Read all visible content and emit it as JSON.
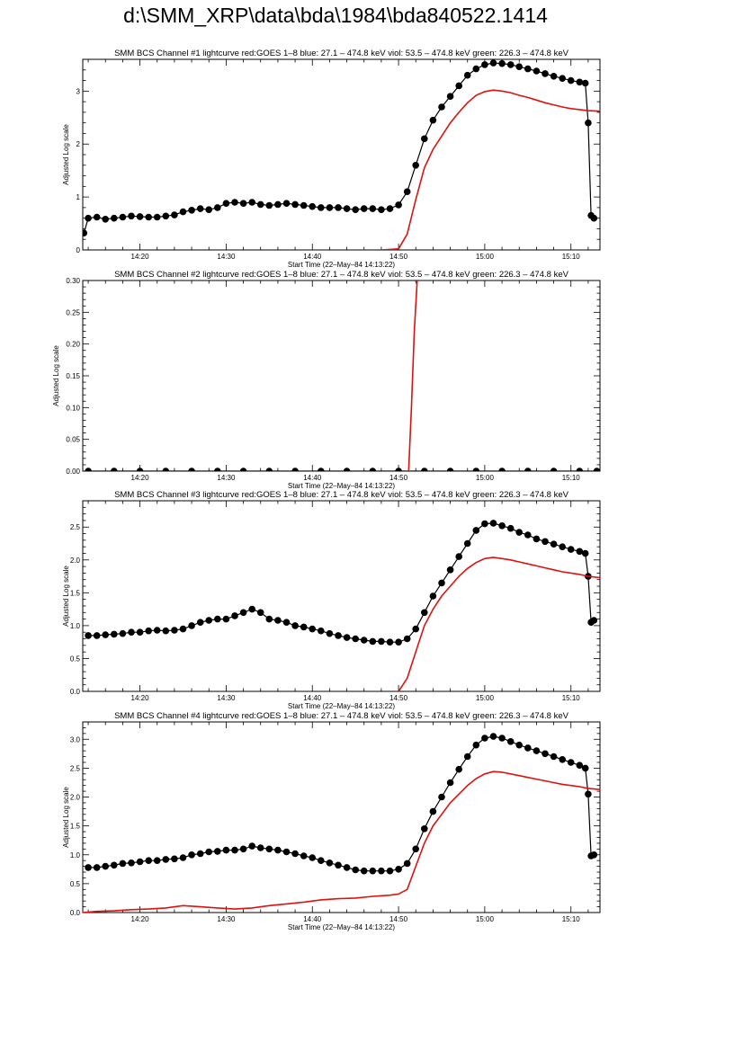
{
  "page": {
    "title": "d:\\SMM_XRP\\data\\bda\\1984\\bda840522.1414"
  },
  "colors": {
    "bcs": "#000000",
    "goes": "#e0100c"
  },
  "chart_data": [
    {
      "type": "line",
      "title": "SMM BCS Channel #1 lightcurve  red:GOES 1–8  blue: 27.1 – 474.8 keV  viol: 53.5 – 474.8 keV  green: 226.3 – 474.8 keV",
      "xlabel": "Start Time (22–May–84 14:13:22)",
      "ylabel": "Adjusted Log scale",
      "xlim": [
        "14:13:22",
        "15:13:22"
      ],
      "ylim": [
        0,
        3.6
      ],
      "x_ticks": [
        "14:20",
        "14:30",
        "14:40",
        "14:50",
        "15:00",
        "15:10"
      ],
      "y_ticks": [
        "0",
        "1",
        "2",
        "3"
      ],
      "y_tick_values": [
        0,
        1,
        2,
        3
      ],
      "series": [
        {
          "color": "black",
          "style": "line+markers",
          "x": [
            "14:13:30",
            "14:14:00",
            "14:15:00",
            "14:16:00",
            "14:17:00",
            "14:18:00",
            "14:19:00",
            "14:20:00",
            "14:21:00",
            "14:22:00",
            "14:23:00",
            "14:24:00",
            "14:25:00",
            "14:26:00",
            "14:27:00",
            "14:28:00",
            "14:29:00",
            "14:30:00",
            "14:31:00",
            "14:32:00",
            "14:33:00",
            "14:34:00",
            "14:35:00",
            "14:36:00",
            "14:37:00",
            "14:38:00",
            "14:39:00",
            "14:40:00",
            "14:41:00",
            "14:42:00",
            "14:43:00",
            "14:44:00",
            "14:45:00",
            "14:46:00",
            "14:47:00",
            "14:48:00",
            "14:49:00",
            "14:50:00",
            "14:51:00",
            "14:52:00",
            "14:53:00",
            "14:54:00",
            "14:55:00",
            "14:56:00",
            "14:57:00",
            "14:58:00",
            "14:59:00",
            "15:00:00",
            "15:01:00",
            "15:02:00",
            "15:03:00",
            "15:04:00",
            "15:05:00",
            "15:06:00",
            "15:07:00",
            "15:08:00",
            "15:09:00",
            "15:10:00",
            "15:11:00",
            "15:11:40",
            "15:12:00",
            "15:12:20",
            "15:12:40"
          ],
          "y": [
            0.32,
            0.6,
            0.62,
            0.58,
            0.6,
            0.62,
            0.64,
            0.63,
            0.62,
            0.62,
            0.64,
            0.66,
            0.72,
            0.75,
            0.78,
            0.76,
            0.8,
            0.88,
            0.9,
            0.88,
            0.9,
            0.86,
            0.84,
            0.86,
            0.88,
            0.86,
            0.84,
            0.82,
            0.8,
            0.8,
            0.8,
            0.78,
            0.76,
            0.78,
            0.78,
            0.76,
            0.78,
            0.85,
            1.1,
            1.6,
            2.1,
            2.45,
            2.7,
            2.9,
            3.1,
            3.3,
            3.42,
            3.5,
            3.53,
            3.52,
            3.5,
            3.46,
            3.42,
            3.38,
            3.33,
            3.28,
            3.24,
            3.2,
            3.17,
            3.15,
            2.4,
            0.65,
            0.6
          ]
        },
        {
          "color": "red",
          "style": "line",
          "x": [
            "14:46:00",
            "14:48:00",
            "14:50:00",
            "14:51:00",
            "14:52:00",
            "14:53:00",
            "14:54:00",
            "14:55:00",
            "14:56:00",
            "14:57:00",
            "14:58:00",
            "14:59:00",
            "15:00:00",
            "15:01:00",
            "15:02:00",
            "15:03:00",
            "15:04:00",
            "15:05:00",
            "15:06:00",
            "15:07:00",
            "15:08:00",
            "15:09:00",
            "15:10:00",
            "15:11:00",
            "15:12:00",
            "15:13:22"
          ],
          "y": [
            0.0,
            0.0,
            0.02,
            0.3,
            0.95,
            1.55,
            1.9,
            2.15,
            2.4,
            2.6,
            2.78,
            2.92,
            2.99,
            3.02,
            3.0,
            2.97,
            2.92,
            2.88,
            2.83,
            2.78,
            2.74,
            2.7,
            2.67,
            2.65,
            2.63,
            2.62
          ]
        }
      ]
    },
    {
      "type": "line",
      "title": "SMM BCS Channel #2 lightcurve  red:GOES 1–8  blue: 27.1 – 474.8 keV  viol: 53.5 – 474.8 keV  green: 226.3 – 474.8 keV",
      "xlabel": "Start Time (22–May–84 14:13:22)",
      "ylabel": "Adjusted Log scale",
      "xlim": [
        "14:13:22",
        "15:13:22"
      ],
      "ylim": [
        0,
        0.3
      ],
      "x_ticks": [
        "14:20",
        "14:30",
        "14:40",
        "14:50",
        "15:00",
        "15:10"
      ],
      "y_ticks": [
        "0.00",
        "0.05",
        "0.10",
        "0.15",
        "0.20",
        "0.25",
        "0.30"
      ],
      "y_tick_values": [
        0,
        0.05,
        0.1,
        0.15,
        0.2,
        0.25,
        0.3
      ],
      "series": [
        {
          "color": "black",
          "style": "line+markers",
          "x": [
            "14:14:00",
            "14:17:00",
            "14:20:00",
            "14:23:00",
            "14:26:00",
            "14:29:00",
            "14:32:00",
            "14:35:00",
            "14:38:00",
            "14:41:00",
            "14:44:00",
            "14:47:00",
            "14:50:00",
            "14:53:00",
            "14:56:00",
            "14:59:00",
            "15:02:00",
            "15:05:00",
            "15:08:00",
            "15:11:00",
            "15:13:00"
          ],
          "y": [
            0,
            0,
            0,
            0,
            0,
            0,
            0,
            0,
            0,
            0,
            0,
            0,
            0,
            0,
            0,
            0,
            0,
            0,
            0,
            0,
            0
          ]
        },
        {
          "color": "red",
          "style": "line",
          "x": [
            "14:51:10",
            "14:51:30",
            "14:51:50",
            "14:52:10"
          ],
          "y": [
            0.0,
            0.1,
            0.22,
            0.3
          ]
        }
      ]
    },
    {
      "type": "line",
      "title": "SMM BCS Channel #3 lightcurve  red:GOES 1–8  blue: 27.1 – 474.8 keV  viol: 53.5 – 474.8 keV  green: 226.3 – 474.8 keV",
      "xlabel": "Start Time (22–May–84 14:13:22)",
      "ylabel": "Adjusted Log scale",
      "xlim": [
        "14:13:22",
        "15:13:22"
      ],
      "ylim": [
        0,
        2.9
      ],
      "x_ticks": [
        "14:20",
        "14:30",
        "14:40",
        "14:50",
        "15:00",
        "15:10"
      ],
      "y_ticks": [
        "0.0",
        "0.5",
        "1.0",
        "1.5",
        "2.0",
        "2.5"
      ],
      "y_tick_values": [
        0,
        0.5,
        1.0,
        1.5,
        2.0,
        2.5
      ],
      "series": [
        {
          "color": "black",
          "style": "line+markers",
          "x": [
            "14:14:00",
            "14:15:00",
            "14:16:00",
            "14:17:00",
            "14:18:00",
            "14:19:00",
            "14:20:00",
            "14:21:00",
            "14:22:00",
            "14:23:00",
            "14:24:00",
            "14:25:00",
            "14:26:00",
            "14:27:00",
            "14:28:00",
            "14:29:00",
            "14:30:00",
            "14:31:00",
            "14:32:00",
            "14:33:00",
            "14:34:00",
            "14:35:00",
            "14:36:00",
            "14:37:00",
            "14:38:00",
            "14:39:00",
            "14:40:00",
            "14:41:00",
            "14:42:00",
            "14:43:00",
            "14:44:00",
            "14:45:00",
            "14:46:00",
            "14:47:00",
            "14:48:00",
            "14:49:00",
            "14:50:00",
            "14:51:00",
            "14:52:00",
            "14:53:00",
            "14:54:00",
            "14:55:00",
            "14:56:00",
            "14:57:00",
            "14:58:00",
            "14:59:00",
            "15:00:00",
            "15:01:00",
            "15:02:00",
            "15:03:00",
            "15:04:00",
            "15:05:00",
            "15:06:00",
            "15:07:00",
            "15:08:00",
            "15:09:00",
            "15:10:00",
            "15:11:00",
            "15:11:40",
            "15:12:00",
            "15:12:20",
            "15:12:40"
          ],
          "y": [
            0.85,
            0.85,
            0.86,
            0.87,
            0.88,
            0.9,
            0.9,
            0.92,
            0.93,
            0.92,
            0.93,
            0.95,
            1.0,
            1.05,
            1.08,
            1.1,
            1.1,
            1.15,
            1.2,
            1.25,
            1.2,
            1.1,
            1.08,
            1.05,
            1.0,
            0.98,
            0.95,
            0.92,
            0.88,
            0.85,
            0.82,
            0.8,
            0.78,
            0.76,
            0.76,
            0.75,
            0.75,
            0.8,
            0.95,
            1.2,
            1.45,
            1.65,
            1.85,
            2.05,
            2.25,
            2.45,
            2.55,
            2.56,
            2.52,
            2.48,
            2.42,
            2.38,
            2.32,
            2.28,
            2.24,
            2.2,
            2.16,
            2.13,
            2.1,
            1.75,
            1.05,
            1.08
          ]
        },
        {
          "color": "red",
          "style": "line",
          "x": [
            "14:50:00",
            "14:51:00",
            "14:52:00",
            "14:53:00",
            "14:54:00",
            "14:55:00",
            "14:56:00",
            "14:57:00",
            "14:58:00",
            "14:59:00",
            "15:00:00",
            "15:01:00",
            "15:02:00",
            "15:03:00",
            "15:04:00",
            "15:05:00",
            "15:06:00",
            "15:07:00",
            "15:08:00",
            "15:09:00",
            "15:10:00",
            "15:11:00",
            "15:12:00",
            "15:13:22"
          ],
          "y": [
            0.0,
            0.2,
            0.6,
            1.0,
            1.25,
            1.45,
            1.6,
            1.75,
            1.87,
            1.96,
            2.02,
            2.04,
            2.02,
            2.0,
            1.97,
            1.94,
            1.91,
            1.88,
            1.85,
            1.82,
            1.8,
            1.78,
            1.75,
            1.73
          ]
        }
      ]
    },
    {
      "type": "line",
      "title": "SMM BCS Channel #4 lightcurve  red:GOES 1–8  blue: 27.1 – 474.8 keV  viol: 53.5 – 474.8 keV  green: 226.3 – 474.8 keV",
      "xlabel": "Start Time (22–May–84 14:13:22)",
      "ylabel": "Adjusted Log scale",
      "xlim": [
        "14:13:22",
        "15:13:22"
      ],
      "ylim": [
        0,
        3.3
      ],
      "x_ticks": [
        "14:20",
        "14:30",
        "14:40",
        "14:50",
        "15:00",
        "15:10"
      ],
      "y_ticks": [
        "0.0",
        "0.5",
        "1.0",
        "1.5",
        "2.0",
        "2.5",
        "3.0"
      ],
      "y_tick_values": [
        0,
        0.5,
        1.0,
        1.5,
        2.0,
        2.5,
        3.0
      ],
      "series": [
        {
          "color": "black",
          "style": "line+markers",
          "x": [
            "14:14:00",
            "14:15:00",
            "14:16:00",
            "14:17:00",
            "14:18:00",
            "14:19:00",
            "14:20:00",
            "14:21:00",
            "14:22:00",
            "14:23:00",
            "14:24:00",
            "14:25:00",
            "14:26:00",
            "14:27:00",
            "14:28:00",
            "14:29:00",
            "14:30:00",
            "14:31:00",
            "14:32:00",
            "14:33:00",
            "14:34:00",
            "14:35:00",
            "14:36:00",
            "14:37:00",
            "14:38:00",
            "14:39:00",
            "14:40:00",
            "14:41:00",
            "14:42:00",
            "14:43:00",
            "14:44:00",
            "14:45:00",
            "14:46:00",
            "14:47:00",
            "14:48:00",
            "14:49:00",
            "14:50:00",
            "14:51:00",
            "14:52:00",
            "14:53:00",
            "14:54:00",
            "14:55:00",
            "14:56:00",
            "14:57:00",
            "14:58:00",
            "14:59:00",
            "15:00:00",
            "15:01:00",
            "15:02:00",
            "15:03:00",
            "15:04:00",
            "15:05:00",
            "15:06:00",
            "15:07:00",
            "15:08:00",
            "15:09:00",
            "15:10:00",
            "15:11:00",
            "15:11:40",
            "15:12:00",
            "15:12:20",
            "15:12:40"
          ],
          "y": [
            0.78,
            0.78,
            0.8,
            0.82,
            0.85,
            0.86,
            0.88,
            0.9,
            0.9,
            0.92,
            0.93,
            0.95,
            1.0,
            1.02,
            1.05,
            1.06,
            1.08,
            1.08,
            1.1,
            1.15,
            1.12,
            1.1,
            1.08,
            1.05,
            1.02,
            0.98,
            0.95,
            0.9,
            0.86,
            0.82,
            0.78,
            0.74,
            0.72,
            0.72,
            0.72,
            0.72,
            0.75,
            0.85,
            1.1,
            1.45,
            1.75,
            2.0,
            2.25,
            2.48,
            2.7,
            2.9,
            3.02,
            3.05,
            3.02,
            2.96,
            2.9,
            2.85,
            2.8,
            2.75,
            2.7,
            2.65,
            2.6,
            2.55,
            2.5,
            2.05,
            0.98,
            1.0
          ]
        },
        {
          "color": "red",
          "style": "line",
          "x": [
            "14:13:22",
            "14:15:00",
            "14:17:00",
            "14:19:00",
            "14:21:00",
            "14:23:00",
            "14:25:00",
            "14:27:00",
            "14:29:00",
            "14:31:00",
            "14:33:00",
            "14:35:00",
            "14:37:00",
            "14:39:00",
            "14:41:00",
            "14:43:00",
            "14:45:00",
            "14:47:00",
            "14:49:00",
            "14:50:00",
            "14:51:00",
            "14:52:00",
            "14:53:00",
            "14:54:00",
            "14:55:00",
            "14:56:00",
            "14:57:00",
            "14:58:00",
            "14:59:00",
            "15:00:00",
            "15:01:00",
            "15:02:00",
            "15:03:00",
            "15:04:00",
            "15:05:00",
            "15:06:00",
            "15:07:00",
            "15:08:00",
            "15:09:00",
            "15:10:00",
            "15:11:00",
            "15:12:00",
            "15:13:22"
          ],
          "y": [
            0.0,
            0.02,
            0.03,
            0.05,
            0.06,
            0.08,
            0.12,
            0.1,
            0.08,
            0.06,
            0.08,
            0.12,
            0.15,
            0.18,
            0.22,
            0.24,
            0.25,
            0.28,
            0.3,
            0.32,
            0.4,
            0.8,
            1.2,
            1.5,
            1.7,
            1.9,
            2.05,
            2.2,
            2.32,
            2.4,
            2.44,
            2.43,
            2.4,
            2.37,
            2.34,
            2.31,
            2.28,
            2.25,
            2.22,
            2.2,
            2.18,
            2.15,
            2.13
          ]
        }
      ]
    }
  ]
}
